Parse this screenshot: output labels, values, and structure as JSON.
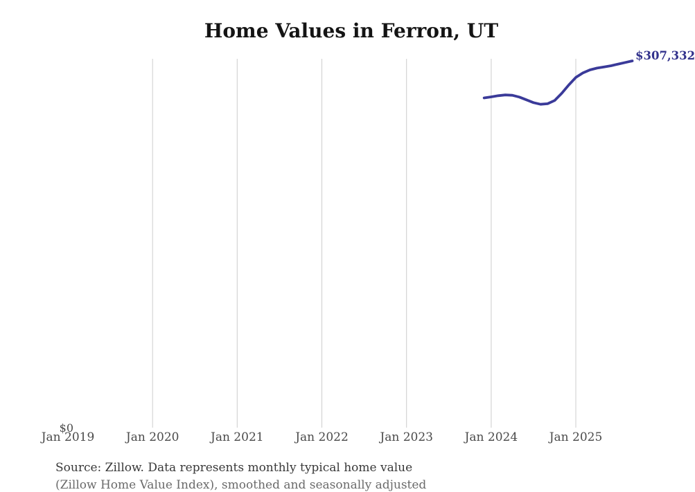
{
  "page": {
    "background": "#ffffff"
  },
  "chart": {
    "title": "Home Values in Ferron, UT",
    "end_label": "$307,332",
    "y_zero_label": "$0",
    "source_line1": "Source: Zillow. Data represents monthly typical home value",
    "source_line2": "(Zillow Home Value Index), smoothed and seasonally adjusted",
    "colors": {
      "line": "#3a3a99",
      "end_label": "#32328c",
      "grid": "#cccccc",
      "title": "#141414",
      "axis_text": "#4a4a4a",
      "source_text": "#383838"
    }
  },
  "chart_data": {
    "type": "line",
    "title": "Home Values in Ferron, UT",
    "xlabel": "",
    "ylabel": "",
    "ylim": [
      0,
      309000
    ],
    "grid": "vertical",
    "legend": "none",
    "y_tick_labels": [
      "$0"
    ],
    "x_tick_labels": [
      "Jan 2019",
      "Jan 2020",
      "Jan 2021",
      "Jan 2022",
      "Jan 2023",
      "Jan 2024",
      "Jan 2025"
    ],
    "gridline_ticks": [
      "Jan 2020",
      "Jan 2021",
      "Jan 2022",
      "Jan 2023",
      "Jan 2024",
      "Jan 2025"
    ],
    "end_annotation": {
      "text": "$307,332",
      "date": "2025-09",
      "value": 307332
    },
    "series": [
      {
        "name": "Typical home value",
        "color": "#3a3a99",
        "points": [
          {
            "date": "2023-12",
            "value": 276400
          },
          {
            "date": "2024-01",
            "value": 277300
          },
          {
            "date": "2024-02",
            "value": 278300
          },
          {
            "date": "2024-03",
            "value": 278900
          },
          {
            "date": "2024-04",
            "value": 278600
          },
          {
            "date": "2024-05",
            "value": 277100
          },
          {
            "date": "2024-06",
            "value": 274800
          },
          {
            "date": "2024-07",
            "value": 272500
          },
          {
            "date": "2024-08",
            "value": 271100
          },
          {
            "date": "2024-09",
            "value": 271600
          },
          {
            "date": "2024-10",
            "value": 274300
          },
          {
            "date": "2024-11",
            "value": 280300
          },
          {
            "date": "2024-12",
            "value": 287200
          },
          {
            "date": "2025-01",
            "value": 293500
          },
          {
            "date": "2025-02",
            "value": 297300
          },
          {
            "date": "2025-03",
            "value": 299800
          },
          {
            "date": "2025-04",
            "value": 301300
          },
          {
            "date": "2025-05",
            "value": 302300
          },
          {
            "date": "2025-06",
            "value": 303300
          },
          {
            "date": "2025-07",
            "value": 304700
          },
          {
            "date": "2025-08",
            "value": 306000
          },
          {
            "date": "2025-09",
            "value": 307332
          }
        ]
      }
    ]
  }
}
